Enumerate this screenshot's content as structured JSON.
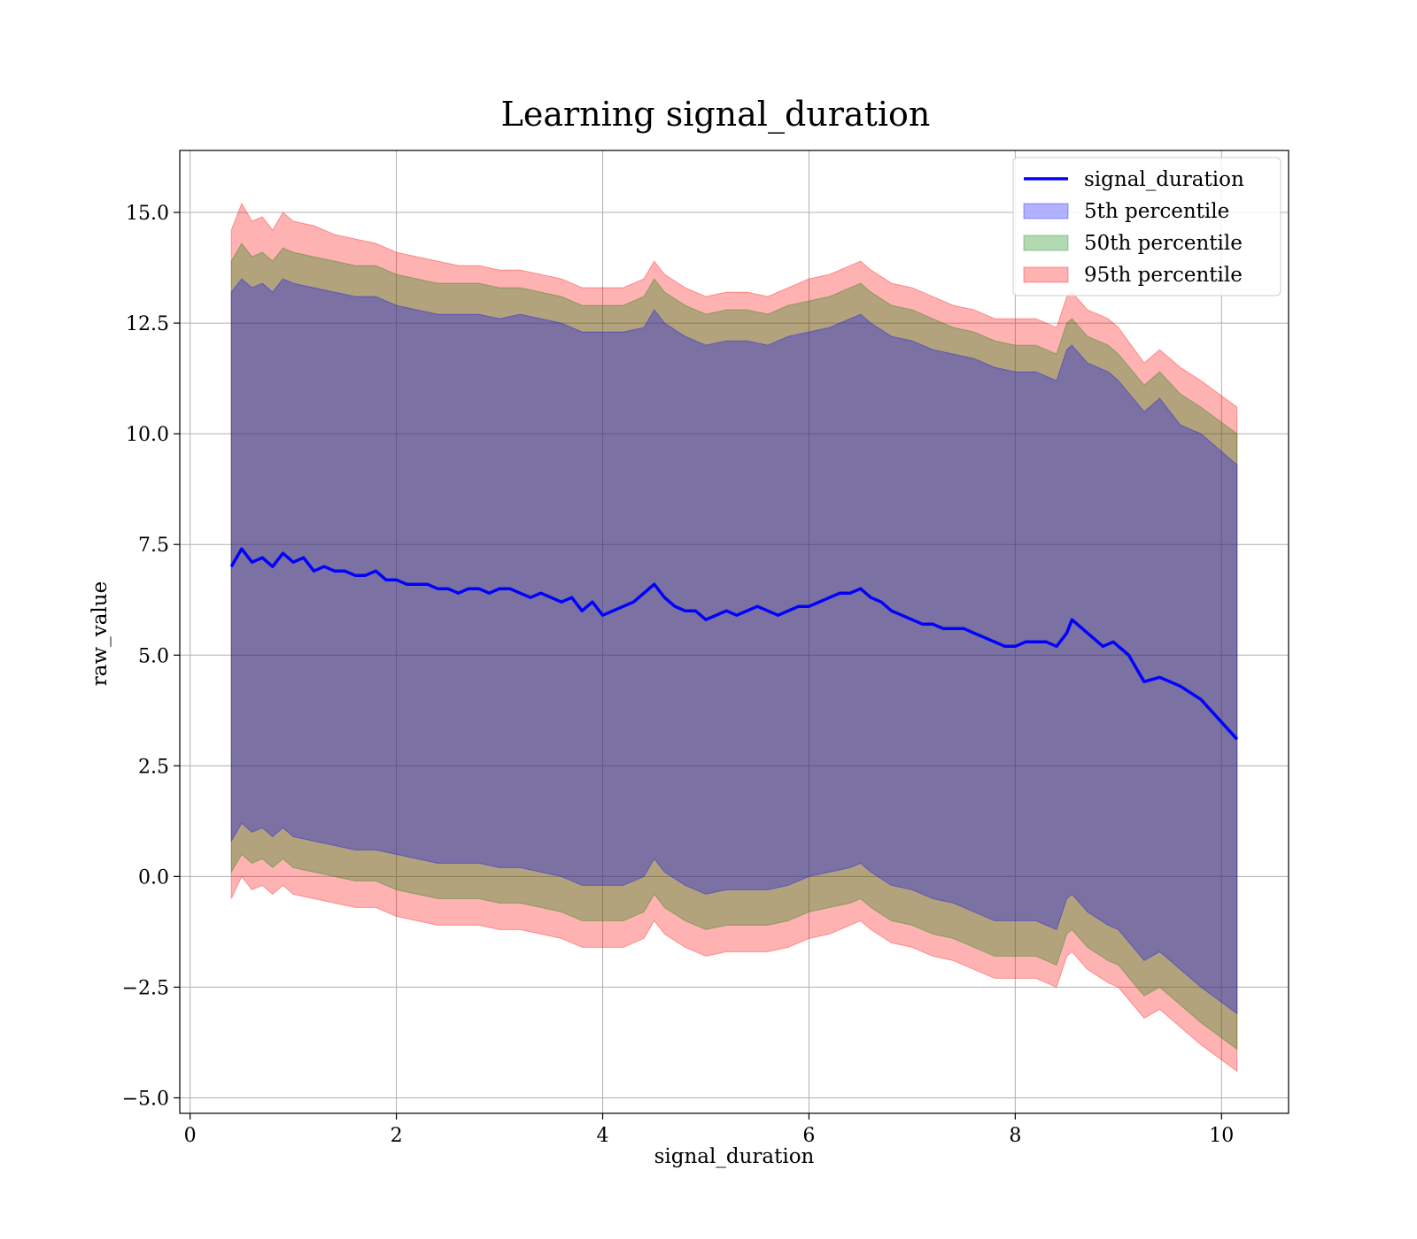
{
  "chart_data": {
    "type": "area",
    "title": "Learning signal_duration",
    "xlabel": "signal_duration",
    "ylabel": "raw_value",
    "xlim": [
      -0.1,
      10.65
    ],
    "ylim": [
      -5.35,
      16.4
    ],
    "xticks": [
      0,
      2,
      4,
      6,
      8,
      10
    ],
    "xtick_labels": [
      "0",
      "2",
      "4",
      "6",
      "8",
      "10"
    ],
    "yticks": [
      -5.0,
      -2.5,
      0.0,
      2.5,
      5.0,
      7.5,
      10.0,
      12.5,
      15.0
    ],
    "ytick_labels": [
      "−5.0",
      "−2.5",
      "0.0",
      "2.5",
      "5.0",
      "7.5",
      "10.0",
      "12.5",
      "15.0"
    ],
    "grid": true,
    "legend_position": "top-right",
    "series": [
      {
        "name": "signal_duration",
        "kind": "line",
        "color": "#0000ff",
        "x": [
          0.4,
          0.5,
          0.6,
          0.7,
          0.8,
          0.9,
          1.0,
          1.1,
          1.2,
          1.3,
          1.4,
          1.5,
          1.6,
          1.7,
          1.8,
          1.9,
          2.0,
          2.1,
          2.2,
          2.3,
          2.4,
          2.5,
          2.6,
          2.7,
          2.8,
          2.9,
          3.0,
          3.1,
          3.2,
          3.3,
          3.4,
          3.5,
          3.6,
          3.7,
          3.8,
          3.9,
          4.0,
          4.1,
          4.2,
          4.3,
          4.4,
          4.5,
          4.6,
          4.7,
          4.8,
          4.9,
          5.0,
          5.1,
          5.2,
          5.3,
          5.4,
          5.5,
          5.6,
          5.7,
          5.8,
          5.9,
          6.0,
          6.1,
          6.2,
          6.3,
          6.4,
          6.5,
          6.6,
          6.7,
          6.8,
          6.9,
          7.0,
          7.1,
          7.2,
          7.3,
          7.4,
          7.5,
          7.6,
          7.7,
          7.8,
          7.9,
          8.0,
          8.1,
          8.2,
          8.3,
          8.4,
          8.5,
          8.55,
          8.7,
          8.85,
          8.95,
          9.1,
          9.25,
          9.4,
          9.6,
          9.8,
          10.15
        ],
        "values": [
          7.0,
          7.4,
          7.1,
          7.2,
          7.0,
          7.3,
          7.1,
          7.2,
          6.9,
          7.0,
          6.9,
          6.9,
          6.8,
          6.8,
          6.9,
          6.7,
          6.7,
          6.6,
          6.6,
          6.6,
          6.5,
          6.5,
          6.4,
          6.5,
          6.5,
          6.4,
          6.5,
          6.5,
          6.4,
          6.3,
          6.4,
          6.3,
          6.2,
          6.3,
          6.0,
          6.2,
          5.9,
          6.0,
          6.1,
          6.2,
          6.4,
          6.6,
          6.3,
          6.1,
          6.0,
          6.0,
          5.8,
          5.9,
          6.0,
          5.9,
          6.0,
          6.1,
          6.0,
          5.9,
          6.0,
          6.1,
          6.1,
          6.2,
          6.3,
          6.4,
          6.4,
          6.5,
          6.3,
          6.2,
          6.0,
          5.9,
          5.8,
          5.7,
          5.7,
          5.6,
          5.6,
          5.6,
          5.5,
          5.4,
          5.3,
          5.2,
          5.2,
          5.3,
          5.3,
          5.3,
          5.2,
          5.5,
          5.8,
          5.5,
          5.2,
          5.3,
          5.0,
          4.4,
          4.5,
          4.3,
          4.0,
          3.1
        ]
      },
      {
        "name": "5th percentile",
        "kind": "band",
        "color": "#0000ff",
        "x": [
          0.4,
          0.5,
          0.6,
          0.7,
          0.8,
          0.9,
          1.0,
          1.2,
          1.4,
          1.6,
          1.8,
          2.0,
          2.2,
          2.4,
          2.6,
          2.8,
          3.0,
          3.2,
          3.4,
          3.6,
          3.8,
          4.0,
          4.2,
          4.4,
          4.5,
          4.6,
          4.8,
          5.0,
          5.2,
          5.4,
          5.6,
          5.8,
          6.0,
          6.2,
          6.4,
          6.5,
          6.6,
          6.8,
          7.0,
          7.2,
          7.4,
          7.6,
          7.8,
          8.0,
          8.2,
          8.4,
          8.5,
          8.55,
          8.7,
          8.9,
          9.0,
          9.25,
          9.4,
          9.6,
          9.8,
          10.15
        ],
        "upper": [
          13.2,
          13.5,
          13.3,
          13.4,
          13.2,
          13.5,
          13.4,
          13.3,
          13.2,
          13.1,
          13.1,
          12.9,
          12.8,
          12.7,
          12.7,
          12.7,
          12.6,
          12.7,
          12.6,
          12.5,
          12.3,
          12.3,
          12.3,
          12.4,
          12.8,
          12.5,
          12.2,
          12.0,
          12.1,
          12.1,
          12.0,
          12.2,
          12.3,
          12.4,
          12.6,
          12.7,
          12.5,
          12.2,
          12.1,
          11.9,
          11.8,
          11.7,
          11.5,
          11.4,
          11.4,
          11.2,
          11.9,
          12.0,
          11.6,
          11.4,
          11.2,
          10.5,
          10.8,
          10.2,
          10.0,
          9.3
        ],
        "lower": [
          0.8,
          1.2,
          1.0,
          1.1,
          0.9,
          1.1,
          0.9,
          0.8,
          0.7,
          0.6,
          0.6,
          0.5,
          0.4,
          0.3,
          0.3,
          0.3,
          0.2,
          0.2,
          0.1,
          0.0,
          -0.2,
          -0.2,
          -0.2,
          0.0,
          0.4,
          0.1,
          -0.2,
          -0.4,
          -0.3,
          -0.3,
          -0.3,
          -0.2,
          0.0,
          0.1,
          0.2,
          0.3,
          0.1,
          -0.2,
          -0.3,
          -0.5,
          -0.6,
          -0.8,
          -1.0,
          -1.0,
          -1.0,
          -1.2,
          -0.5,
          -0.4,
          -0.8,
          -1.1,
          -1.2,
          -1.9,
          -1.7,
          -2.1,
          -2.5,
          -3.1
        ]
      },
      {
        "name": "50th percentile",
        "kind": "band",
        "color": "#008000",
        "x": [
          0.4,
          0.5,
          0.6,
          0.7,
          0.8,
          0.9,
          1.0,
          1.2,
          1.4,
          1.6,
          1.8,
          2.0,
          2.2,
          2.4,
          2.6,
          2.8,
          3.0,
          3.2,
          3.4,
          3.6,
          3.8,
          4.0,
          4.2,
          4.4,
          4.5,
          4.6,
          4.8,
          5.0,
          5.2,
          5.4,
          5.6,
          5.8,
          6.0,
          6.2,
          6.4,
          6.5,
          6.6,
          6.8,
          7.0,
          7.2,
          7.4,
          7.6,
          7.8,
          8.0,
          8.2,
          8.4,
          8.5,
          8.55,
          8.7,
          8.9,
          9.0,
          9.25,
          9.4,
          9.6,
          9.8,
          10.15
        ],
        "upper": [
          13.9,
          14.3,
          14.0,
          14.1,
          13.9,
          14.2,
          14.1,
          14.0,
          13.9,
          13.8,
          13.8,
          13.6,
          13.5,
          13.4,
          13.4,
          13.4,
          13.3,
          13.3,
          13.2,
          13.1,
          12.9,
          12.9,
          12.9,
          13.1,
          13.5,
          13.2,
          12.9,
          12.7,
          12.8,
          12.8,
          12.7,
          12.9,
          13.0,
          13.1,
          13.3,
          13.4,
          13.2,
          12.9,
          12.8,
          12.6,
          12.4,
          12.3,
          12.1,
          12.0,
          12.0,
          11.8,
          12.5,
          12.6,
          12.2,
          12.0,
          11.8,
          11.1,
          11.4,
          10.9,
          10.6,
          10.0
        ],
        "lower": [
          0.1,
          0.5,
          0.3,
          0.4,
          0.2,
          0.4,
          0.2,
          0.1,
          0.0,
          -0.1,
          -0.1,
          -0.3,
          -0.4,
          -0.5,
          -0.5,
          -0.5,
          -0.6,
          -0.6,
          -0.7,
          -0.8,
          -1.0,
          -1.0,
          -1.0,
          -0.8,
          -0.4,
          -0.7,
          -1.0,
          -1.2,
          -1.1,
          -1.1,
          -1.1,
          -1.0,
          -0.8,
          -0.7,
          -0.6,
          -0.5,
          -0.7,
          -1.0,
          -1.1,
          -1.3,
          -1.4,
          -1.6,
          -1.8,
          -1.8,
          -1.8,
          -2.0,
          -1.3,
          -1.2,
          -1.6,
          -1.9,
          -2.0,
          -2.7,
          -2.5,
          -2.9,
          -3.3,
          -3.9
        ]
      },
      {
        "name": "95th percentile",
        "kind": "band",
        "color": "#ff0000",
        "x": [
          0.4,
          0.5,
          0.6,
          0.7,
          0.8,
          0.9,
          1.0,
          1.2,
          1.4,
          1.6,
          1.8,
          2.0,
          2.2,
          2.4,
          2.6,
          2.8,
          3.0,
          3.2,
          3.4,
          3.6,
          3.8,
          4.0,
          4.2,
          4.4,
          4.5,
          4.6,
          4.8,
          5.0,
          5.2,
          5.4,
          5.6,
          5.8,
          6.0,
          6.2,
          6.4,
          6.5,
          6.6,
          6.8,
          7.0,
          7.2,
          7.4,
          7.6,
          7.8,
          8.0,
          8.2,
          8.4,
          8.5,
          8.55,
          8.7,
          8.9,
          9.0,
          9.25,
          9.4,
          9.6,
          9.8,
          10.15
        ],
        "upper": [
          14.6,
          15.2,
          14.8,
          14.9,
          14.6,
          15.0,
          14.8,
          14.7,
          14.5,
          14.4,
          14.3,
          14.1,
          14.0,
          13.9,
          13.8,
          13.8,
          13.7,
          13.7,
          13.6,
          13.5,
          13.3,
          13.3,
          13.3,
          13.5,
          13.9,
          13.6,
          13.3,
          13.1,
          13.2,
          13.2,
          13.1,
          13.3,
          13.5,
          13.6,
          13.8,
          13.9,
          13.7,
          13.4,
          13.3,
          13.1,
          12.9,
          12.8,
          12.6,
          12.6,
          12.6,
          12.4,
          13.1,
          13.2,
          12.8,
          12.6,
          12.4,
          11.6,
          11.9,
          11.5,
          11.2,
          10.6
        ],
        "lower": [
          -0.5,
          0.0,
          -0.3,
          -0.2,
          -0.4,
          -0.2,
          -0.4,
          -0.5,
          -0.6,
          -0.7,
          -0.7,
          -0.9,
          -1.0,
          -1.1,
          -1.1,
          -1.1,
          -1.2,
          -1.2,
          -1.3,
          -1.4,
          -1.6,
          -1.6,
          -1.6,
          -1.4,
          -1.0,
          -1.3,
          -1.6,
          -1.8,
          -1.7,
          -1.7,
          -1.7,
          -1.6,
          -1.4,
          -1.3,
          -1.1,
          -1.0,
          -1.2,
          -1.5,
          -1.6,
          -1.8,
          -1.9,
          -2.1,
          -2.3,
          -2.3,
          -2.3,
          -2.5,
          -1.8,
          -1.7,
          -2.1,
          -2.4,
          -2.5,
          -3.2,
          -3.0,
          -3.4,
          -3.8,
          -4.4
        ]
      }
    ]
  }
}
